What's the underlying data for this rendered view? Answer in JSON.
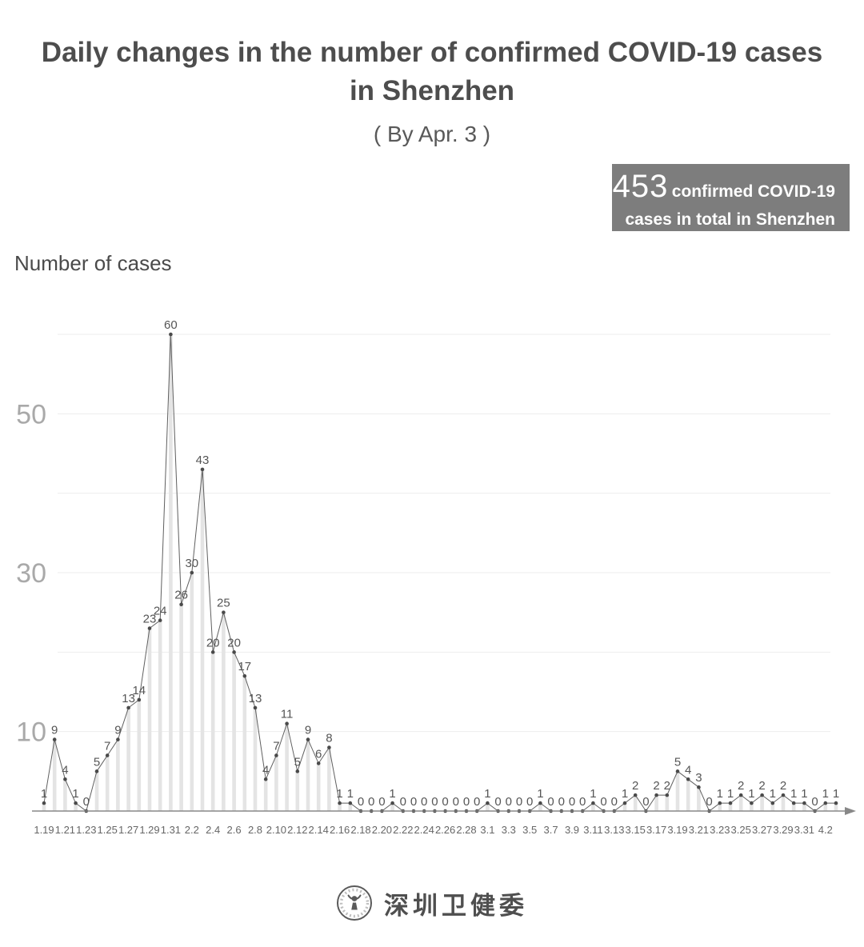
{
  "title": {
    "line1": "Daily changes in the number of confirmed COVID-19 cases",
    "line2": "in Shenzhen",
    "subtitle": "( By Apr. 3 )"
  },
  "badge": {
    "number": "453",
    "line1": "confirmed COVID-19",
    "line2": "cases in total in Shenzhen",
    "bg_color": "#7d7d7d",
    "text_color": "#ffffff"
  },
  "footer": {
    "org_name": "深圳卫健委",
    "logo": "shenzhen-health-commission-emblem"
  },
  "chart_data": {
    "type": "line",
    "title": "Daily changes in the number of confirmed COVID-19 cases in Shenzhen",
    "subtitle": "( By Apr. 3 )",
    "ylabel": "Number of cases",
    "xlabel": "",
    "total_annotation": "453 confirmed COVID-19 cases in total in Shenzhen",
    "x": [
      "1.19",
      "1.20",
      "1.21",
      "1.22",
      "1.23",
      "1.24",
      "1.25",
      "1.26",
      "1.27",
      "1.28",
      "1.29",
      "1.30",
      "1.31",
      "2.1",
      "2.2",
      "2.3",
      "2.4",
      "2.5",
      "2.6",
      "2.7",
      "2.8",
      "2.9",
      "2.10",
      "2.11",
      "2.12",
      "2.13",
      "2.14",
      "2.15",
      "2.16",
      "2.17",
      "2.18",
      "2.19",
      "2.20",
      "2.21",
      "2.22",
      "2.23",
      "2.24",
      "2.25",
      "2.26",
      "2.27",
      "2.28",
      "2.29",
      "3.1",
      "3.2",
      "3.3",
      "3.4",
      "3.5",
      "3.6",
      "3.7",
      "3.8",
      "3.9",
      "3.10",
      "3.11",
      "3.12",
      "3.13",
      "3.14",
      "3.15",
      "3.16",
      "3.17",
      "3.18",
      "3.19",
      "3.20",
      "3.21",
      "3.22",
      "3.23",
      "3.24",
      "3.25",
      "3.26",
      "3.27",
      "3.28",
      "3.29",
      "3.30",
      "3.31",
      "4.1",
      "4.2",
      "4.3"
    ],
    "values": [
      1,
      9,
      4,
      1,
      0,
      5,
      7,
      9,
      13,
      14,
      23,
      24,
      60,
      26,
      30,
      43,
      20,
      25,
      20,
      17,
      13,
      4,
      7,
      11,
      5,
      9,
      6,
      8,
      1,
      1,
      0,
      0,
      0,
      1,
      0,
      0,
      0,
      0,
      0,
      0,
      0,
      0,
      1,
      0,
      0,
      0,
      0,
      1,
      0,
      0,
      0,
      0,
      1,
      0,
      0,
      1,
      2,
      0,
      2,
      2,
      5,
      4,
      3,
      0,
      1,
      1,
      2,
      1,
      2,
      1,
      2,
      1,
      1,
      0,
      1,
      1
    ],
    "x_tick_labels": [
      "1.19",
      "1.21",
      "1.23",
      "1.25",
      "1.27",
      "1.29",
      "1.31",
      "2.2",
      "2.4",
      "2.6",
      "2.8",
      "2.10",
      "2.12",
      "2.14",
      "2.16",
      "2.18",
      "2.20",
      "2.22",
      "2.24",
      "2.26",
      "2.28",
      "3.1",
      "3.3",
      "3.5",
      "3.7",
      "3.9",
      "3.11",
      "3.13",
      "3.15",
      "3.17",
      "3.19",
      "3.21",
      "3.23",
      "3.25",
      "3.27",
      "3.29",
      "3.31",
      "4.2"
    ],
    "x_tick_every": 2,
    "ylim": [
      0,
      60
    ],
    "y_gridlines": [
      10,
      20,
      30,
      40,
      50,
      60
    ],
    "y_tick_labels": [
      50,
      30,
      10
    ],
    "grid": "on",
    "point_labels_shown": true,
    "legend": "none",
    "colors": {
      "grid": "#ededed",
      "y_label": "#a9a9a9",
      "bar": "#e4e4e4",
      "line": "#5f5f5f",
      "dot": "#4a4a4a",
      "point_label": "#555555",
      "tick_label": "#666666",
      "axis": "#888888"
    }
  }
}
